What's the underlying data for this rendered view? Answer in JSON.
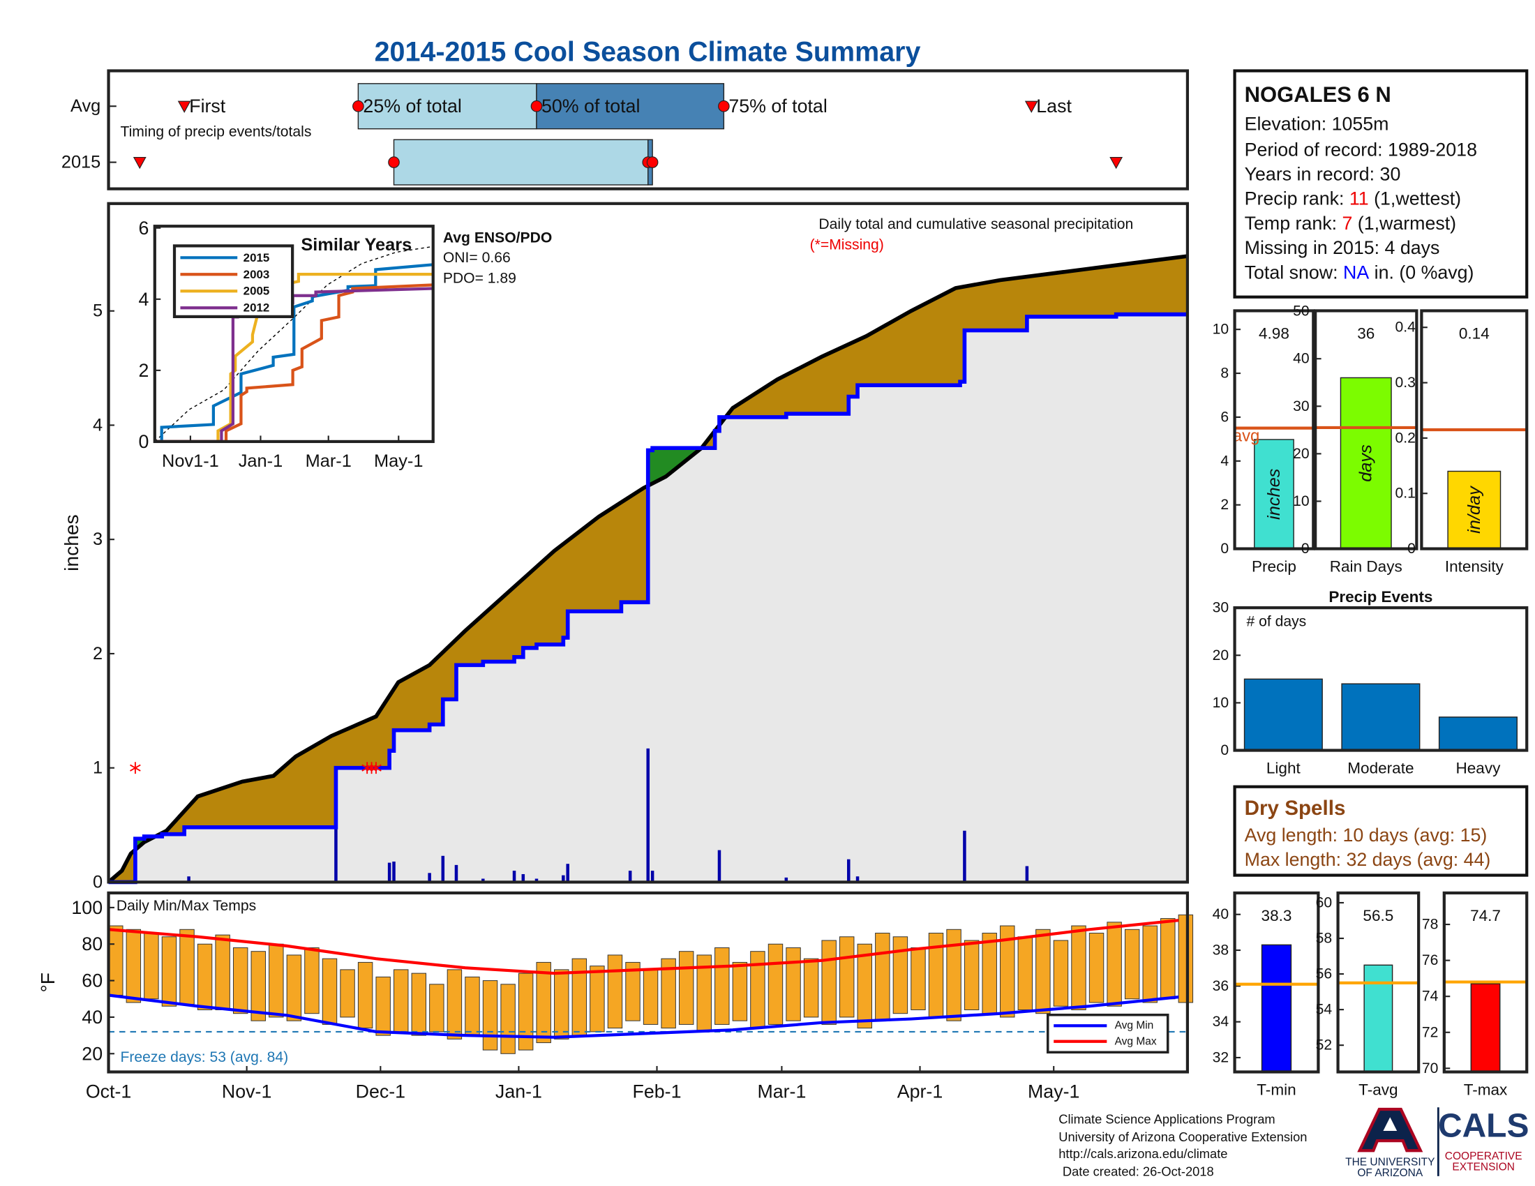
{
  "title": "2014-2015 Cool Season Climate Summary",
  "chart_data": [
    {
      "type": "timeline",
      "rows": [
        "Avg",
        "2015"
      ],
      "markers": [
        [
          17,
          56,
          96,
          138,
          207
        ],
        [
          7,
          64,
          121,
          122,
          226
        ]
      ],
      "marker_labels": [
        "First",
        "25% of total",
        "50% of total",
        "75% of total",
        "Last"
      ],
      "note": "Timing of precip events/totals",
      "colors": {
        "first_half": "#add8e6",
        "second_half": "#4682b4",
        "marker": "#ff0000"
      },
      "xlim": [
        0,
        242
      ]
    },
    {
      "type": "line",
      "ylabel": "inches",
      "note": "Daily total and cumulative seasonal precipitation",
      "missing_note": "(*=Missing)",
      "fill_colors": {
        "avg_above": "#b8860b",
        "current_above": "#228b22",
        "both": "#e8e8e8"
      },
      "series": [
        {
          "color": "#000000",
          "x": [
            0,
            3,
            5,
            8,
            13,
            20,
            30,
            37,
            42,
            50,
            60,
            65,
            72,
            80,
            90,
            100,
            110,
            120,
            125,
            133,
            140,
            150,
            160,
            170,
            180,
            190,
            200,
            210,
            220,
            230,
            242
          ],
          "values": [
            0,
            0.1,
            0.25,
            0.35,
            0.45,
            0.75,
            0.88,
            0.93,
            1.1,
            1.28,
            1.45,
            1.75,
            1.9,
            2.2,
            2.55,
            2.9,
            3.2,
            3.45,
            3.55,
            3.8,
            4.15,
            4.4,
            4.6,
            4.78,
            5.0,
            5.2,
            5.27,
            5.32,
            5.37,
            5.42,
            5.48
          ]
        },
        {
          "color": "#0000ff",
          "x": [
            0,
            6,
            6,
            8,
            8,
            12,
            12,
            17,
            17,
            51,
            51,
            63,
            63,
            64,
            64,
            72,
            72,
            75,
            75,
            78,
            78,
            84,
            84,
            91,
            91,
            93,
            93,
            96,
            96,
            102,
            102,
            103,
            103,
            115,
            115,
            121,
            121,
            122,
            122,
            136,
            136,
            137,
            137,
            152,
            152,
            166,
            166,
            168,
            168,
            191,
            191,
            192,
            192,
            206,
            206,
            226,
            226,
            242
          ],
          "values": [
            0,
            0,
            0.38,
            0.38,
            0.4,
            0.4,
            0.42,
            0.42,
            0.48,
            0.48,
            1.0,
            1.0,
            1.15,
            1.15,
            1.33,
            1.33,
            1.38,
            1.38,
            1.6,
            1.6,
            1.9,
            1.9,
            1.93,
            1.93,
            1.97,
            1.97,
            2.05,
            2.05,
            2.08,
            2.08,
            2.14,
            2.14,
            2.37,
            2.37,
            2.45,
            2.45,
            3.78,
            3.78,
            3.8,
            3.8,
            3.95,
            3.95,
            4.07,
            4.07,
            4.1,
            4.1,
            4.25,
            4.25,
            4.35,
            4.35,
            4.38,
            4.38,
            4.83,
            4.83,
            4.95,
            4.95,
            4.97,
            4.97
          ]
        }
      ],
      "bars": {
        "color": "#0000aa",
        "x": [
          6,
          18,
          51,
          63,
          64,
          72,
          75,
          78,
          84,
          91,
          93,
          96,
          102,
          103,
          117,
          121,
          122,
          137,
          152,
          166,
          168,
          192,
          206
        ],
        "values": [
          0.38,
          0.05,
          0.5,
          0.17,
          0.18,
          0.08,
          0.23,
          0.15,
          0.03,
          0.1,
          0.07,
          0.03,
          0.06,
          0.16,
          0.1,
          1.17,
          0.1,
          0.28,
          0.04,
          0.2,
          0.05,
          0.45,
          0.14
        ]
      },
      "missing": {
        "color": "#ff0000",
        "x": [
          6,
          58,
          59,
          60
        ],
        "values": [
          1,
          1,
          1,
          1
        ]
      },
      "xlim": [
        0,
        242
      ],
      "ylim": [
        0,
        5.94
      ],
      "yticks": [
        0,
        1,
        2,
        3,
        4,
        5
      ]
    },
    {
      "type": "line",
      "title": "Similar Years",
      "enso_title": "Avg ENSO/PDO",
      "enso_lines": [
        "ONI= 0.66",
        "PDO= 1.89"
      ],
      "legend": "upper left",
      "reference": {
        "color": "#000000",
        "x": [
          0,
          30,
          60,
          90,
          120,
          150,
          180,
          210,
          242
        ],
        "values": [
          0,
          0.9,
          1.45,
          2.55,
          3.45,
          4.4,
          5.0,
          5.32,
          5.48
        ]
      },
      "series": [
        {
          "name": "2015",
          "color": "#0072bd",
          "x": [
            0,
            6,
            6,
            51,
            51,
            75,
            75,
            103,
            103,
            121,
            121,
            137,
            137,
            168,
            168,
            192,
            192,
            242
          ],
          "values": [
            0,
            0,
            0.4,
            0.48,
            1.0,
            1.38,
            1.9,
            2.14,
            2.37,
            2.45,
            3.78,
            3.95,
            4.07,
            4.25,
            4.35,
            4.38,
            4.83,
            4.97
          ]
        },
        {
          "name": "2003",
          "color": "#d95319",
          "x": [
            0,
            62,
            62,
            75,
            75,
            80,
            80,
            120,
            120,
            128,
            128,
            145,
            145,
            160,
            160,
            172,
            172,
            242
          ],
          "values": [
            0,
            0,
            0.3,
            0.5,
            1.3,
            1.4,
            1.5,
            1.6,
            2.0,
            2.1,
            2.6,
            2.9,
            3.4,
            3.5,
            4.1,
            4.2,
            4.3,
            4.4
          ]
        },
        {
          "name": "2005",
          "color": "#edb120",
          "x": [
            0,
            55,
            55,
            66,
            66,
            70,
            70,
            85,
            85,
            92,
            92,
            110,
            110,
            125,
            125,
            242
          ],
          "values": [
            0,
            0,
            0.3,
            0.5,
            1.9,
            2.0,
            2.4,
            2.8,
            3.0,
            3.9,
            4.0,
            4.1,
            4.4,
            4.5,
            4.7,
            4.7
          ]
        },
        {
          "name": "2012",
          "color": "#7e2f8e",
          "x": [
            0,
            58,
            58,
            68,
            68,
            72,
            72,
            110,
            110,
            120,
            120,
            140,
            140,
            242
          ],
          "values": [
            0,
            0,
            0.3,
            0.5,
            3.5,
            3.5,
            3.6,
            3.6,
            3.9,
            3.9,
            4.1,
            4.1,
            4.2,
            4.3
          ]
        }
      ],
      "xlim": [
        0,
        242
      ],
      "xticks": [
        {
          "value": 31,
          "label": "Nov1-1"
        },
        {
          "value": 92,
          "label": "Jan-1"
        },
        {
          "value": 151,
          "label": "Mar-1"
        },
        {
          "value": 212,
          "label": "May-1"
        }
      ],
      "ylim": [
        0,
        6.05
      ],
      "yticks": [
        0,
        2,
        4,
        6
      ]
    },
    {
      "type": "range",
      "title": "Daily Min/Max Temps",
      "ylabel": "°F",
      "color": "#f5a623",
      "legend": "lower right",
      "x": [
        0,
        4,
        8,
        12,
        16,
        20,
        24,
        28,
        32,
        36,
        40,
        44,
        48,
        52,
        56,
        60,
        64,
        68,
        72,
        76,
        80,
        84,
        88,
        92,
        96,
        100,
        104,
        108,
        112,
        116,
        120,
        124,
        128,
        132,
        136,
        140,
        144,
        148,
        152,
        156,
        160,
        164,
        168,
        172,
        176,
        180,
        184,
        188,
        192,
        196,
        200,
        204,
        208,
        212,
        216,
        220,
        224,
        228,
        232,
        236,
        240
      ],
      "high": [
        90,
        88,
        86,
        84,
        88,
        80,
        85,
        78,
        76,
        80,
        74,
        78,
        72,
        66,
        70,
        62,
        66,
        64,
        58,
        66,
        62,
        60,
        58,
        64,
        70,
        66,
        72,
        68,
        74,
        70,
        66,
        72,
        76,
        74,
        78,
        70,
        76,
        80,
        78,
        72,
        82,
        84,
        80,
        86,
        84,
        78,
        86,
        88,
        82,
        86,
        90,
        84,
        88,
        82,
        90,
        86,
        92,
        88,
        90,
        94,
        96
      ],
      "low": [
        52,
        48,
        50,
        46,
        47,
        44,
        44,
        42,
        38,
        40,
        38,
        42,
        36,
        40,
        34,
        30,
        32,
        30,
        32,
        28,
        30,
        22,
        20,
        22,
        26,
        28,
        30,
        32,
        34,
        38,
        36,
        34,
        36,
        32,
        36,
        38,
        34,
        36,
        38,
        40,
        36,
        40,
        34,
        38,
        42,
        44,
        40,
        38,
        44,
        42,
        40,
        44,
        42,
        46,
        44,
        48,
        46,
        50,
        48,
        50,
        48
      ],
      "series": [
        {
          "name": "Avg Min",
          "color": "#0000ff",
          "x": [
            0,
            20,
            40,
            60,
            80,
            100,
            120,
            140,
            160,
            180,
            200,
            220,
            240
          ],
          "values": [
            52,
            46,
            41,
            32,
            30,
            29,
            31,
            33,
            37,
            39,
            42,
            46,
            51
          ]
        },
        {
          "name": "Avg Max",
          "color": "#ff0000",
          "x": [
            0,
            20,
            40,
            60,
            80,
            100,
            120,
            140,
            160,
            180,
            200,
            220,
            240
          ],
          "values": [
            88,
            84,
            79,
            72,
            67,
            64,
            66,
            68,
            71,
            77,
            82,
            88,
            93
          ]
        }
      ],
      "freeze_line": 32,
      "freeze_color": "#1f77b4",
      "freeze_note": "Freeze days: 53 (avg. 84)",
      "xlim": [
        0,
        242
      ],
      "xticks": [
        {
          "value": 0,
          "label": "Oct-1"
        },
        {
          "value": 31,
          "label": "Nov-1"
        },
        {
          "value": 61,
          "label": "Dec-1"
        },
        {
          "value": 92,
          "label": "Jan-1"
        },
        {
          "value": 123,
          "label": "Feb-1"
        },
        {
          "value": 151,
          "label": "Mar-1"
        },
        {
          "value": 182,
          "label": "Apr-1"
        },
        {
          "value": 212,
          "label": "May-1"
        }
      ],
      "ylim": [
        10,
        108
      ],
      "yticks": [
        20,
        40,
        60,
        80,
        100
      ]
    },
    {
      "type": "bar",
      "categories": [
        "Precip"
      ],
      "values": [
        4.98
      ],
      "avg": 5.5,
      "avg_label": "avg",
      "unit_label": "inches",
      "color": "#40e0d0",
      "avg_color": "#d95319",
      "ylim": [
        0,
        10.85
      ],
      "yticks": [
        0,
        2,
        4,
        6,
        8,
        10
      ]
    },
    {
      "type": "bar",
      "categories": [
        "Rain Days"
      ],
      "values": [
        36
      ],
      "avg": 25.5,
      "unit_label": "days",
      "color": "#7cfc00",
      "avg_color": "#d95319",
      "ylim": [
        0,
        50.1
      ],
      "yticks": [
        0,
        10,
        20,
        30,
        40,
        50
      ]
    },
    {
      "type": "bar",
      "categories": [
        "Intensity"
      ],
      "values": [
        0.14
      ],
      "avg": 0.215,
      "unit_label": "in/day",
      "color": "#ffd700",
      "avg_color": "#d95319",
      "ylim": [
        0,
        0.43
      ],
      "yticks": [
        0,
        0.1,
        0.2,
        0.3,
        0.4
      ]
    },
    {
      "type": "bar",
      "title": "Precip Events",
      "note": "# of days",
      "categories": [
        "Light",
        "Moderate",
        "Heavy"
      ],
      "values": [
        15,
        14,
        7
      ],
      "color": "#0072bd",
      "ylim": [
        0,
        30
      ],
      "yticks": [
        0,
        10,
        20,
        30
      ]
    },
    {
      "type": "bar",
      "categories": [
        "T-min"
      ],
      "values": [
        38.3
      ],
      "avg": 36.1,
      "color": "#0000ff",
      "avg_color": "#ffa500",
      "ylim": [
        31.2,
        41.2
      ],
      "yticks": [
        32,
        34,
        36,
        38,
        40
      ]
    },
    {
      "type": "bar",
      "categories": [
        "T-avg"
      ],
      "values": [
        56.5
      ],
      "avg": 55.5,
      "color": "#40e0d0",
      "avg_color": "#ffa500",
      "ylim": [
        50.5,
        60.55
      ],
      "yticks": [
        52,
        54,
        56,
        58,
        60
      ]
    },
    {
      "type": "bar",
      "categories": [
        "T-max"
      ],
      "values": [
        74.7
      ],
      "avg": 74.8,
      "color": "#ff0000",
      "avg_color": "#ffa500",
      "ylim": [
        69.8,
        79.75
      ],
      "yticks": [
        70,
        72,
        74,
        76,
        78
      ]
    }
  ],
  "station": {
    "name": "NOGALES 6 N",
    "lines": [
      "Elevation: 1055m",
      "Period of record: 1989-2018",
      "Years in record: 30"
    ],
    "precip_rank": {
      "label": "Precip rank:",
      "value": 11,
      "note": "(1,wettest)"
    },
    "temp_rank": {
      "label": "Temp rank:",
      "value": 7,
      "note": "(1,warmest)"
    },
    "missing": "Missing in 2015: 4 days",
    "snow": {
      "label": "Total snow:",
      "value": "NA",
      "note": "in. (0 %avg)"
    }
  },
  "dry_spells": {
    "title": "Dry Spells",
    "lines": [
      "Avg length: 10 days (avg: 15)",
      "Max length: 32 days (avg: 44)"
    ]
  },
  "footer": [
    "Climate Science Applications Program",
    "University of Arizona Cooperative Extension",
    "http://cals.arizona.edu/climate",
    "Date created: 26-Oct-2018"
  ],
  "logos": {
    "ua": [
      "THE UNIVERSITY",
      "OF ARIZONA"
    ],
    "cals": "CALS",
    "extension": [
      "COOPERATIVE",
      "EXTENSION"
    ]
  }
}
